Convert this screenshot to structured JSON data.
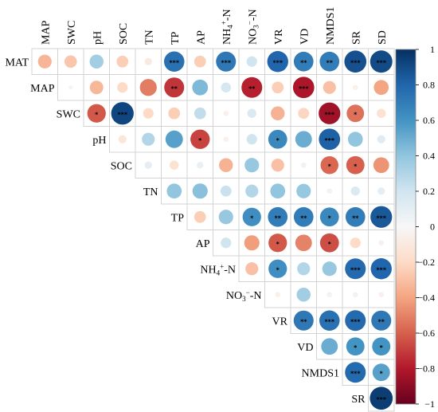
{
  "chart_data": {
    "type": "heatmap",
    "style": "upper-triangle correlation circles",
    "variables": [
      "MAT",
      "MAP",
      "SWC",
      "pH",
      "SOC",
      "TN",
      "TP",
      "AP",
      "NH4+-N",
      "NO3−-N",
      "VR",
      "VD",
      "NMDS1",
      "SR",
      "SD"
    ],
    "row_labels": [
      "MAT",
      "MAP",
      "SWC",
      "pH",
      "SOC",
      "TN",
      "TP",
      "AP",
      "NH4+-N",
      "NO3−-N",
      "VR",
      "VD",
      "NMDS1",
      "SR"
    ],
    "col_labels": [
      "MAP",
      "SWC",
      "pH",
      "SOC",
      "TN",
      "TP",
      "AP",
      "NH4+-N",
      "NO3−-N",
      "VR",
      "VD",
      "NMDS1",
      "SR",
      "SD"
    ],
    "colorbar": {
      "range": [
        -1,
        1
      ],
      "ticks": [
        "1",
        "0.8",
        "0.6",
        "0.4",
        "0.2",
        "0",
        "−0.2",
        "−0.4",
        "−0.6",
        "−0.8",
        "−1"
      ],
      "colors": [
        "#67001f",
        "#b2182b",
        "#d6604d",
        "#f4a582",
        "#fddbc7",
        "#f7f7f7",
        "#d1e5f0",
        "#92c5de",
        "#4393c3",
        "#2166ac",
        "#053061"
      ]
    },
    "cells": [
      {
        "row": "MAT",
        "col": "MAP",
        "r": -0.34,
        "sig": ""
      },
      {
        "row": "MAT",
        "col": "SWC",
        "r": -0.28,
        "sig": ""
      },
      {
        "row": "MAT",
        "col": "pH",
        "r": 0.35,
        "sig": ""
      },
      {
        "row": "MAT",
        "col": "SOC",
        "r": -0.25,
        "sig": ""
      },
      {
        "row": "MAT",
        "col": "TN",
        "r": -0.1,
        "sig": ""
      },
      {
        "row": "MAT",
        "col": "TP",
        "r": 0.75,
        "sig": "***"
      },
      {
        "row": "MAT",
        "col": "AP",
        "r": -0.25,
        "sig": ""
      },
      {
        "row": "MAT",
        "col": "NH4+-N",
        "r": 0.72,
        "sig": "***"
      },
      {
        "row": "MAT",
        "col": "NO3−-N",
        "r": 0.2,
        "sig": ""
      },
      {
        "row": "MAT",
        "col": "VR",
        "r": 0.8,
        "sig": "***"
      },
      {
        "row": "MAT",
        "col": "VD",
        "r": 0.7,
        "sig": "**"
      },
      {
        "row": "MAT",
        "col": "NMDS1",
        "r": 0.7,
        "sig": "**"
      },
      {
        "row": "MAT",
        "col": "SR",
        "r": 0.88,
        "sig": "***"
      },
      {
        "row": "MAT",
        "col": "SD",
        "r": 0.9,
        "sig": "***"
      },
      {
        "row": "MAP",
        "col": "SWC",
        "r": 0.03,
        "sig": ""
      },
      {
        "row": "MAP",
        "col": "pH",
        "r": -0.33,
        "sig": ""
      },
      {
        "row": "MAP",
        "col": "SOC",
        "r": -0.2,
        "sig": ""
      },
      {
        "row": "MAP",
        "col": "TN",
        "r": -0.52,
        "sig": ""
      },
      {
        "row": "MAP",
        "col": "TP",
        "r": -0.72,
        "sig": "**"
      },
      {
        "row": "MAP",
        "col": "AP",
        "r": 0.45,
        "sig": ""
      },
      {
        "row": "MAP",
        "col": "NH4+-N",
        "r": 0.18,
        "sig": ""
      },
      {
        "row": "MAP",
        "col": "NO3−-N",
        "r": -0.78,
        "sig": "**"
      },
      {
        "row": "MAP",
        "col": "VR",
        "r": -0.25,
        "sig": ""
      },
      {
        "row": "MAP",
        "col": "VD",
        "r": -0.82,
        "sig": "***"
      },
      {
        "row": "MAP",
        "col": "NMDS1",
        "r": -0.3,
        "sig": ""
      },
      {
        "row": "MAP",
        "col": "SR",
        "r": -0.05,
        "sig": ""
      },
      {
        "row": "MAP",
        "col": "SD",
        "r": -0.4,
        "sig": ""
      },
      {
        "row": "SWC",
        "col": "pH",
        "r": -0.62,
        "sig": "*"
      },
      {
        "row": "SWC",
        "col": "SOC",
        "r": 0.92,
        "sig": "***"
      },
      {
        "row": "SWC",
        "col": "TN",
        "r": -0.2,
        "sig": ""
      },
      {
        "row": "SWC",
        "col": "TP",
        "r": -0.25,
        "sig": ""
      },
      {
        "row": "SWC",
        "col": "AP",
        "r": 0.25,
        "sig": ""
      },
      {
        "row": "SWC",
        "col": "NH4+-N",
        "r": -0.05,
        "sig": ""
      },
      {
        "row": "SWC",
        "col": "NO3−-N",
        "r": 0.15,
        "sig": ""
      },
      {
        "row": "SWC",
        "col": "VR",
        "r": -0.35,
        "sig": ""
      },
      {
        "row": "SWC",
        "col": "VD",
        "r": -0.22,
        "sig": ""
      },
      {
        "row": "SWC",
        "col": "NMDS1",
        "r": -0.85,
        "sig": "***"
      },
      {
        "row": "SWC",
        "col": "SR",
        "r": -0.55,
        "sig": "*"
      },
      {
        "row": "SWC",
        "col": "SD",
        "r": -0.15,
        "sig": ""
      },
      {
        "row": "pH",
        "col": "SOC",
        "r": -0.12,
        "sig": ""
      },
      {
        "row": "pH",
        "col": "TN",
        "r": 0.3,
        "sig": ""
      },
      {
        "row": "pH",
        "col": "TP",
        "r": 0.55,
        "sig": ""
      },
      {
        "row": "pH",
        "col": "AP",
        "r": -0.68,
        "sig": "*"
      },
      {
        "row": "pH",
        "col": "NH4+-N",
        "r": -0.05,
        "sig": ""
      },
      {
        "row": "pH",
        "col": "NO3−-N",
        "r": 0.2,
        "sig": ""
      },
      {
        "row": "pH",
        "col": "VR",
        "r": 0.65,
        "sig": "*"
      },
      {
        "row": "pH",
        "col": "VD",
        "r": 0.5,
        "sig": ""
      },
      {
        "row": "pH",
        "col": "NMDS1",
        "r": 0.82,
        "sig": "***"
      },
      {
        "row": "pH",
        "col": "SR",
        "r": 0.4,
        "sig": ""
      },
      {
        "row": "pH",
        "col": "SD",
        "r": 0.12,
        "sig": ""
      },
      {
        "row": "SOC",
        "col": "TN",
        "r": 0.1,
        "sig": ""
      },
      {
        "row": "SOC",
        "col": "TP",
        "r": -0.15,
        "sig": ""
      },
      {
        "row": "SOC",
        "col": "AP",
        "r": 0.08,
        "sig": ""
      },
      {
        "row": "SOC",
        "col": "NH4+-N",
        "r": -0.35,
        "sig": ""
      },
      {
        "row": "SOC",
        "col": "NO3−-N",
        "r": 0.38,
        "sig": ""
      },
      {
        "row": "SOC",
        "col": "VR",
        "r": -0.3,
        "sig": ""
      },
      {
        "row": "SOC",
        "col": "VD",
        "r": 0.05,
        "sig": ""
      },
      {
        "row": "SOC",
        "col": "NMDS1",
        "r": -0.58,
        "sig": "*"
      },
      {
        "row": "SOC",
        "col": "SR",
        "r": -0.6,
        "sig": "*"
      },
      {
        "row": "SOC",
        "col": "SD",
        "r": -0.45,
        "sig": ""
      },
      {
        "row": "TN",
        "col": "TP",
        "r": 0.4,
        "sig": ""
      },
      {
        "row": "TN",
        "col": "AP",
        "r": 0.42,
        "sig": ""
      },
      {
        "row": "TN",
        "col": "NH4+-N",
        "r": 0.22,
        "sig": ""
      },
      {
        "row": "TN",
        "col": "NO3−-N",
        "r": 0.3,
        "sig": ""
      },
      {
        "row": "TN",
        "col": "VR",
        "r": 0.4,
        "sig": ""
      },
      {
        "row": "TN",
        "col": "VD",
        "r": 0.38,
        "sig": ""
      },
      {
        "row": "TN",
        "col": "NMDS1",
        "r": 0.05,
        "sig": ""
      },
      {
        "row": "TN",
        "col": "SR",
        "r": 0.15,
        "sig": ""
      },
      {
        "row": "TN",
        "col": "SD",
        "r": 0.1,
        "sig": ""
      },
      {
        "row": "TP",
        "col": "AP",
        "r": -0.25,
        "sig": ""
      },
      {
        "row": "TP",
        "col": "NH4+-N",
        "r": 0.38,
        "sig": ""
      },
      {
        "row": "TP",
        "col": "NO3−-N",
        "r": 0.62,
        "sig": "*"
      },
      {
        "row": "TP",
        "col": "VR",
        "r": 0.7,
        "sig": "**"
      },
      {
        "row": "TP",
        "col": "VD",
        "r": 0.7,
        "sig": "**"
      },
      {
        "row": "TP",
        "col": "NMDS1",
        "r": 0.65,
        "sig": "*"
      },
      {
        "row": "TP",
        "col": "SR",
        "r": 0.7,
        "sig": "**"
      },
      {
        "row": "TP",
        "col": "SD",
        "r": 0.85,
        "sig": "***"
      },
      {
        "row": "AP",
        "col": "NH4+-N",
        "r": 0.2,
        "sig": ""
      },
      {
        "row": "AP",
        "col": "NO3−-N",
        "r": -0.42,
        "sig": ""
      },
      {
        "row": "AP",
        "col": "VR",
        "r": -0.62,
        "sig": "*"
      },
      {
        "row": "AP",
        "col": "VD",
        "r": -0.5,
        "sig": ""
      },
      {
        "row": "AP",
        "col": "NMDS1",
        "r": -0.65,
        "sig": "*"
      },
      {
        "row": "AP",
        "col": "SR",
        "r": -0.2,
        "sig": ""
      },
      {
        "row": "AP",
        "col": "SD",
        "r": -0.05,
        "sig": ""
      },
      {
        "row": "NH4+-N",
        "col": "NO3−-N",
        "r": -0.3,
        "sig": ""
      },
      {
        "row": "NH4+-N",
        "col": "VR",
        "r": 0.62,
        "sig": "*"
      },
      {
        "row": "NH4+-N",
        "col": "VD",
        "r": 0.3,
        "sig": ""
      },
      {
        "row": "NH4+-N",
        "col": "NMDS1",
        "r": 0.38,
        "sig": ""
      },
      {
        "row": "NH4+-N",
        "col": "SR",
        "r": 0.78,
        "sig": "***"
      },
      {
        "row": "NH4+-N",
        "col": "SD",
        "r": 0.8,
        "sig": "***"
      },
      {
        "row": "NO3−-N",
        "col": "VR",
        "r": -0.05,
        "sig": ""
      },
      {
        "row": "NO3−-N",
        "col": "VD",
        "r": 0.35,
        "sig": ""
      },
      {
        "row": "NO3−-N",
        "col": "NMDS1",
        "r": 0.05,
        "sig": ""
      },
      {
        "row": "NO3−-N",
        "col": "SR",
        "r": 0.05,
        "sig": ""
      },
      {
        "row": "NO3−-N",
        "col": "SD",
        "r": -0.05,
        "sig": ""
      },
      {
        "row": "VR",
        "col": "VD",
        "r": 0.72,
        "sig": "**"
      },
      {
        "row": "VR",
        "col": "NMDS1",
        "r": 0.75,
        "sig": "***"
      },
      {
        "row": "VR",
        "col": "SR",
        "r": 0.78,
        "sig": "***"
      },
      {
        "row": "VR",
        "col": "SD",
        "r": 0.72,
        "sig": "**"
      },
      {
        "row": "VD",
        "col": "NMDS1",
        "r": 0.5,
        "sig": ""
      },
      {
        "row": "VD",
        "col": "SR",
        "r": 0.6,
        "sig": "*"
      },
      {
        "row": "VD",
        "col": "SD",
        "r": 0.6,
        "sig": "*"
      },
      {
        "row": "NMDS1",
        "col": "SR",
        "r": 0.78,
        "sig": "***"
      },
      {
        "row": "NMDS1",
        "col": "SD",
        "r": 0.55,
        "sig": "*"
      },
      {
        "row": "SR",
        "col": "SD",
        "r": 0.95,
        "sig": "***"
      }
    ]
  }
}
